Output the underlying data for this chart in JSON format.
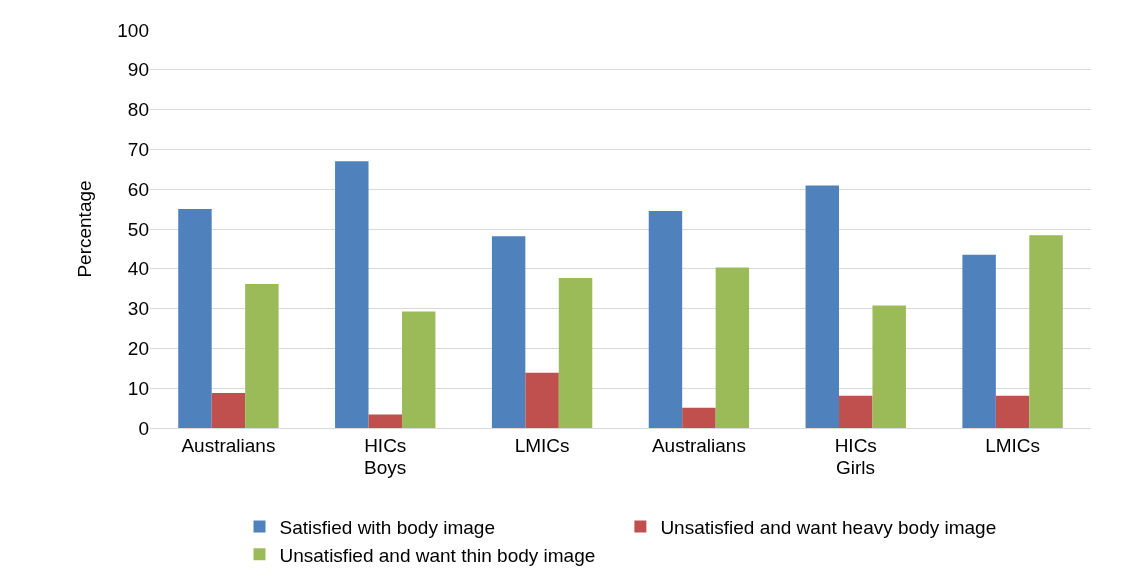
{
  "chart_data": {
    "type": "bar",
    "ylabel": "Percentage",
    "categories": [
      "Australians",
      "HICs",
      "LMICs",
      "Australians",
      "HICs",
      "LMICs"
    ],
    "annotations": [
      "Boys",
      "Girls"
    ],
    "series": [
      {
        "name": "Satisfied with body image",
        "color": "#4f81bd",
        "values": [
          55.0,
          67.0,
          48.2,
          54.5,
          60.9,
          43.5
        ]
      },
      {
        "name": "Unsatisfied and want heavy body image",
        "color": "#c0504d",
        "values": [
          8.8,
          3.4,
          13.9,
          5.1,
          8.1,
          8.1
        ]
      },
      {
        "name": "Unsatisfied and want thin body image",
        "color": "#9bbb59",
        "values": [
          36.2,
          29.3,
          37.7,
          40.3,
          30.8,
          48.4
        ]
      }
    ],
    "ylim": [
      0,
      100
    ],
    "yticks": [
      0,
      10,
      20,
      30,
      40,
      50,
      60,
      70,
      80,
      90,
      100
    ],
    "grid": "y",
    "legend": "bottom"
  }
}
